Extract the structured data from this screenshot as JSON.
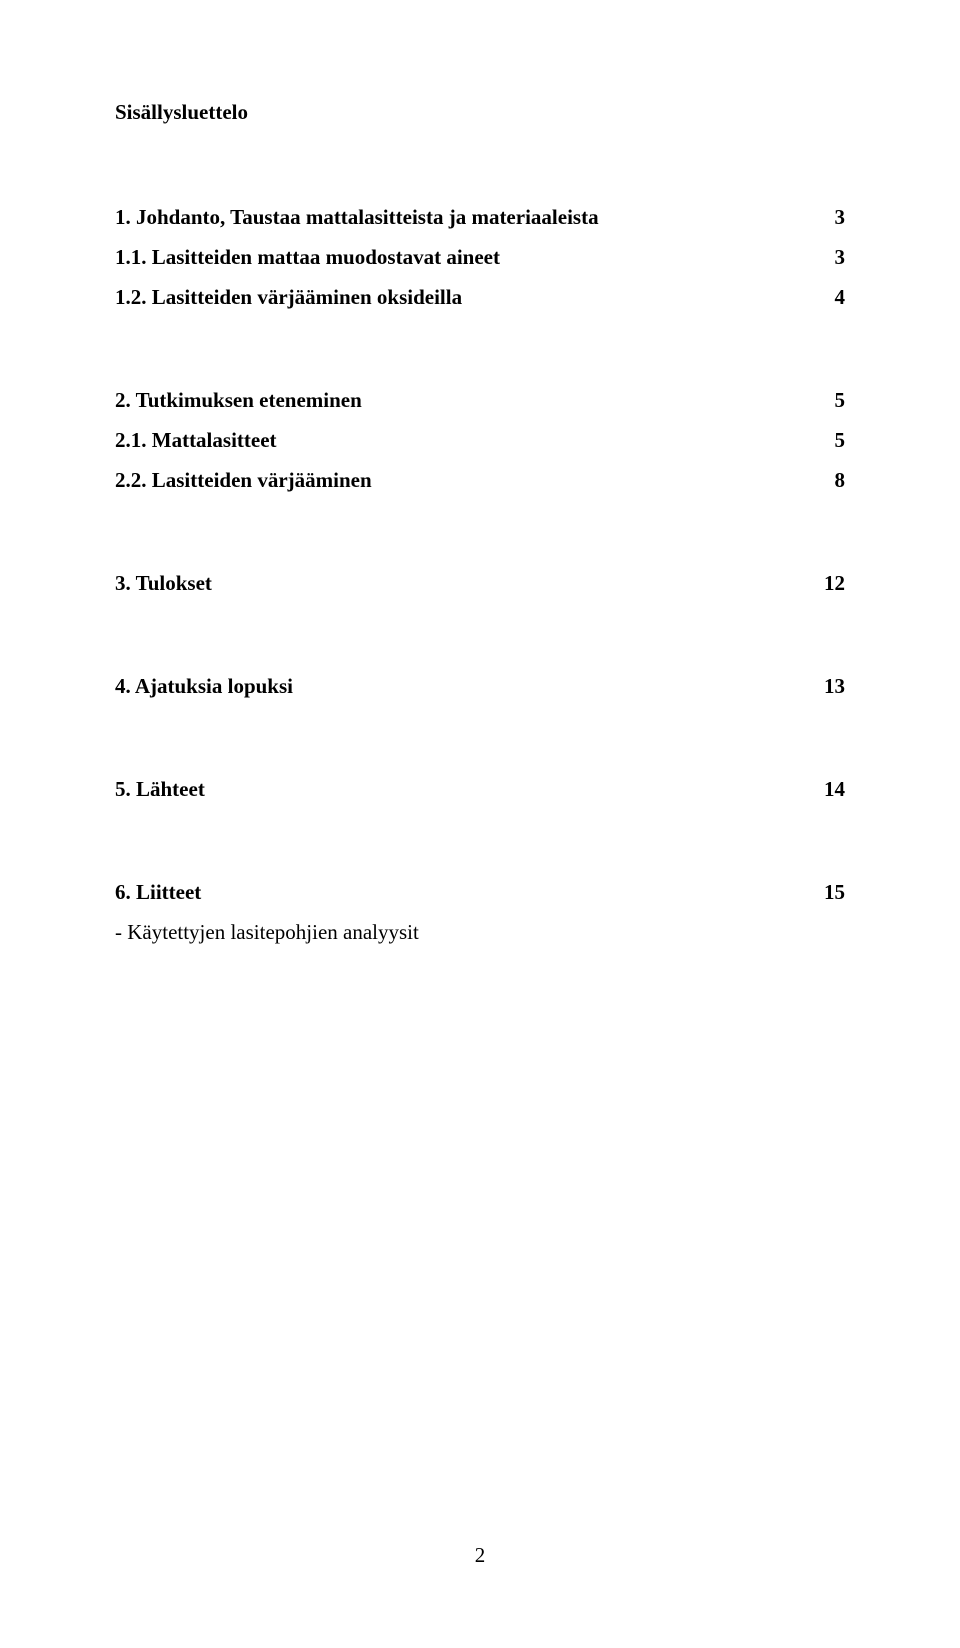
{
  "title": "Sisällysluettelo",
  "toc": {
    "s1": {
      "label": "1.  Johdanto, Taustaa mattalasitteista ja materiaaleista",
      "page": "3"
    },
    "s1_1": {
      "label": "1.1. Lasitteiden mattaa muodostavat aineet",
      "page": "3"
    },
    "s1_2": {
      "label": "1.2. Lasitteiden värjääminen oksideilla",
      "page": "4"
    },
    "s2": {
      "label": "2.  Tutkimuksen eteneminen",
      "page": "5"
    },
    "s2_1": {
      "label": "2.1. Mattalasitteet",
      "page": "5"
    },
    "s2_2": {
      "label": "2.2. Lasitteiden värjääminen",
      "page": "8"
    },
    "s3": {
      "label": "3.  Tulokset",
      "page": "12"
    },
    "s4": {
      "label": "4.  Ajatuksia lopuksi",
      "page": "13"
    },
    "s5": {
      "label": "5.  Lähteet",
      "page": "14"
    },
    "s6": {
      "label": "6.  Liitteet",
      "page": "15"
    },
    "s6_sub": "- Käytettyjen lasitepohjien analyysit"
  },
  "page_number": "2",
  "colors": {
    "background": "#ffffff",
    "text": "#000000"
  },
  "typography": {
    "font_family": "Times New Roman",
    "title_fontsize": 21,
    "body_fontsize": 21,
    "weight_bold": "bold"
  }
}
